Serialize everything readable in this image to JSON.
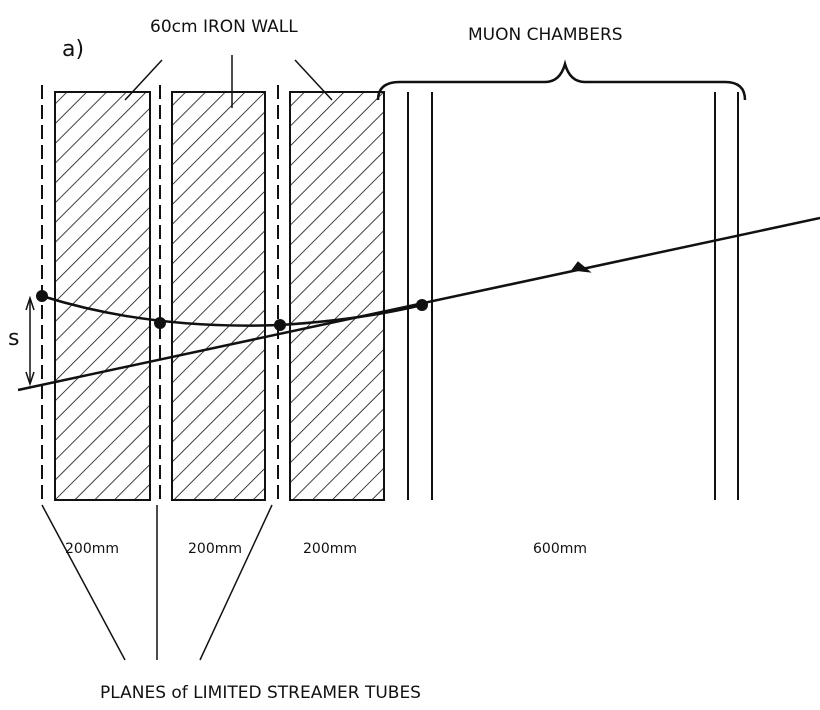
{
  "panel_label": "a)",
  "iron_wall_label": "60cm IRON WALL",
  "muon_chambers_label": "MUON CHAMBERS",
  "sagitta_label": "s",
  "gaps": [
    "200mm",
    "200mm",
    "200mm",
    "600mm"
  ],
  "planes_label": "PLANES of LIMITED STREAMER TUBES"
}
